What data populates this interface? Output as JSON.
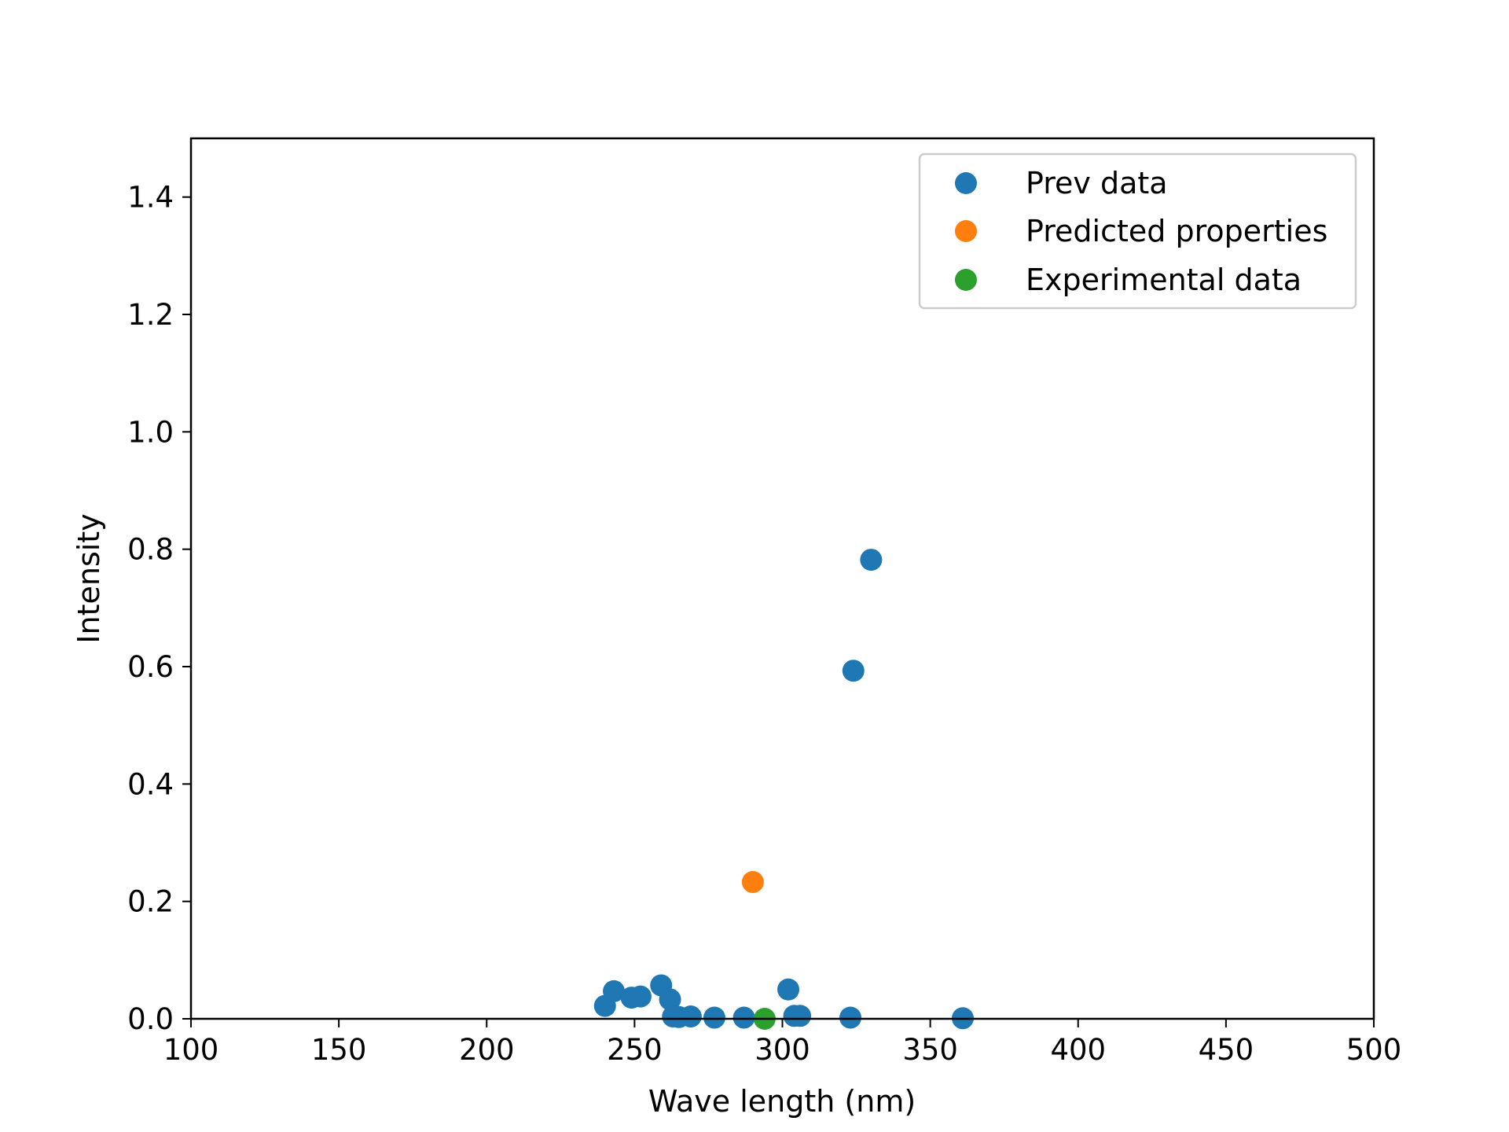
{
  "chart_data": {
    "type": "scatter",
    "xlabel": "Wave length (nm)",
    "ylabel": "Intensity",
    "xlim": [
      100,
      500
    ],
    "ylim": [
      0,
      1.5
    ],
    "xticks": [
      "100",
      "150",
      "200",
      "250",
      "300",
      "350",
      "400",
      "450",
      "500"
    ],
    "yticks": [
      "0.0",
      "0.2",
      "0.4",
      "0.6",
      "0.8",
      "1.0",
      "1.2",
      "1.4"
    ],
    "grid": false,
    "legend_position": "top-right",
    "series": [
      {
        "name": "Prev data",
        "color": "#1f77b4",
        "points": [
          [
            240,
            0.022
          ],
          [
            243,
            0.047
          ],
          [
            249,
            0.036
          ],
          [
            252,
            0.038
          ],
          [
            259,
            0.057
          ],
          [
            262,
            0.033
          ],
          [
            263,
            0.004
          ],
          [
            265,
            0.003
          ],
          [
            269,
            0.004
          ],
          [
            277,
            0.002
          ],
          [
            287,
            0.002
          ],
          [
            302,
            0.05
          ],
          [
            304,
            0.005
          ],
          [
            306,
            0.005
          ],
          [
            323,
            0.002
          ],
          [
            324,
            0.593
          ],
          [
            330,
            0.782
          ],
          [
            361,
            0.001
          ]
        ]
      },
      {
        "name": "Predicted properties",
        "color": "#ff7f0e",
        "points": [
          [
            290,
            0.233
          ]
        ]
      },
      {
        "name": "Experimental data",
        "color": "#2ca02c",
        "points": [
          [
            294,
            0.0
          ]
        ]
      }
    ]
  }
}
